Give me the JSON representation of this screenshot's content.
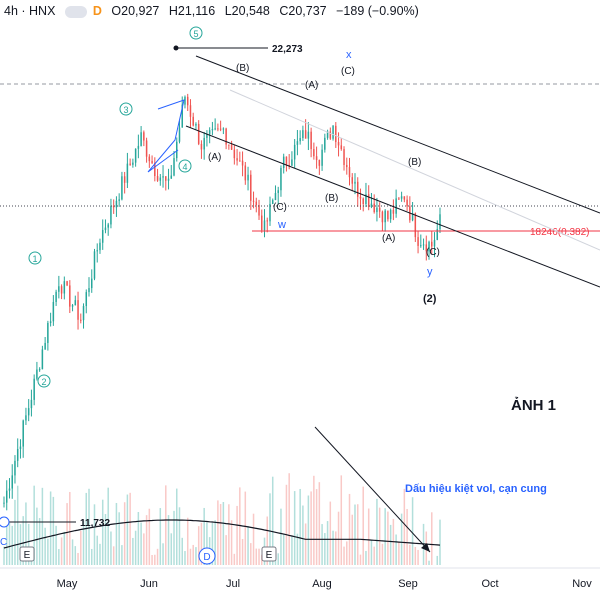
{
  "header": {
    "symbol": "4h · HNX",
    "interval_badge": "D",
    "open": "O20,927",
    "high": "H21,116",
    "low": "L20,548",
    "close": "C20,737",
    "change": "−189 (−0.90%)"
  },
  "annotations": {
    "high_label": "22,273",
    "low_label": "11,732",
    "fib_label": "18246(0.382)",
    "anh_label": "ẢNH 1",
    "vol_note": "Dấu hiệu kiệt vol, cạn cung",
    "low_marker": "C"
  },
  "wave_labels": {
    "w1": "1",
    "w2": "2",
    "w3": "3",
    "w4": "4",
    "w5": "5",
    "A1": "(A)",
    "B1": "(B)",
    "C1": "(C)",
    "A2": "(A)",
    "B2": "(B)",
    "C2": "(C)",
    "A3": "(A)",
    "B3": "(B)",
    "C3": "(C)",
    "w": "w",
    "x": "x",
    "y": "y",
    "big2": "(2)"
  },
  "event_markers": [
    "E",
    "D",
    "E"
  ],
  "colors": {
    "up": "#26a69a",
    "down": "#ef5350",
    "wave_green": "#26a69a",
    "wxy_blue": "#2962ff",
    "fib_red": "#f23645",
    "channel": "#131722",
    "ma": "#131722",
    "vol_up": "#b2dfdb",
    "vol_down": "#f9c9c7"
  },
  "chart_data": {
    "type": "candlestick",
    "ylim": [
      10500,
      24500
    ],
    "reference_levels": [
      22273,
      18246,
      11732
    ],
    "x_ticks": [
      "May",
      "Jun",
      "Jul",
      "Aug",
      "Sep",
      "Oct",
      "Nov"
    ],
    "series": [
      {
        "name": "close",
        "waypoints": [
          [
            0,
            11732
          ],
          [
            10,
            14500
          ],
          [
            20,
            17500
          ],
          [
            28,
            16500
          ],
          [
            35,
            18600
          ],
          [
            42,
            19800
          ],
          [
            50,
            21200
          ],
          [
            55,
            20400
          ],
          [
            60,
            19900
          ],
          [
            66,
            22273
          ],
          [
            72,
            21000
          ],
          [
            80,
            21400
          ],
          [
            88,
            20200
          ],
          [
            95,
            18800
          ],
          [
            102,
            20500
          ],
          [
            110,
            21300
          ],
          [
            115,
            20700
          ],
          [
            120,
            21500
          ],
          [
            128,
            19900
          ],
          [
            133,
            19600
          ],
          [
            140,
            19100
          ],
          [
            146,
            19700
          ],
          [
            151,
            18600
          ],
          [
            156,
            18400
          ],
          [
            159,
            19000
          ]
        ]
      }
    ]
  }
}
